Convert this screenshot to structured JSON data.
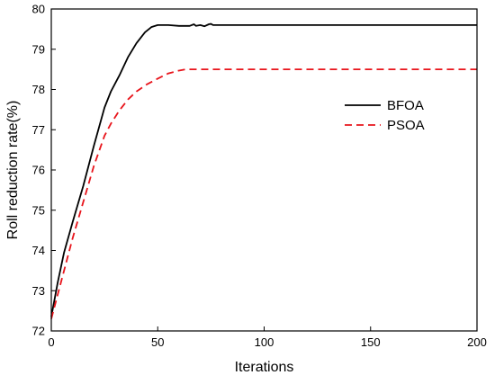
{
  "chart_data": {
    "type": "line",
    "title": "",
    "xlabel": "Iterations",
    "ylabel": "Roll reduction rate(%)",
    "xlim": [
      0,
      200
    ],
    "ylim": [
      72,
      80
    ],
    "xticks": [
      0,
      50,
      100,
      150,
      200
    ],
    "yticks": [
      72,
      73,
      74,
      75,
      76,
      77,
      78,
      79,
      80
    ],
    "grid": false,
    "legend_position": "center-right",
    "series": [
      {
        "name": "BFOA",
        "color": "#000000",
        "dash": "solid",
        "x": [
          0,
          3,
          6,
          10,
          15,
          20,
          25,
          28,
          32,
          36,
          40,
          44,
          47,
          50,
          52,
          55,
          60,
          65,
          67,
          68,
          70,
          72,
          74,
          75,
          76,
          78,
          80,
          100,
          150,
          200
        ],
        "y": [
          72.35,
          73.2,
          73.95,
          74.7,
          75.6,
          76.6,
          77.55,
          77.95,
          78.35,
          78.8,
          79.15,
          79.42,
          79.55,
          79.6,
          79.6,
          79.6,
          79.58,
          79.58,
          79.62,
          79.58,
          79.6,
          79.57,
          79.62,
          79.63,
          79.6,
          79.6,
          79.6,
          79.6,
          79.6,
          79.6
        ]
      },
      {
        "name": "PSOA",
        "color": "#e8141b",
        "dash": "dashed",
        "x": [
          0,
          3,
          6,
          10,
          15,
          20,
          25,
          28,
          32,
          36,
          40,
          45,
          50,
          55,
          60,
          63,
          65,
          70,
          80,
          100,
          150,
          200
        ],
        "y": [
          72.3,
          72.9,
          73.5,
          74.3,
          75.2,
          76.1,
          76.85,
          77.15,
          77.48,
          77.75,
          77.95,
          78.13,
          78.27,
          78.4,
          78.47,
          78.5,
          78.5,
          78.5,
          78.5,
          78.5,
          78.5,
          78.5
        ]
      }
    ]
  }
}
